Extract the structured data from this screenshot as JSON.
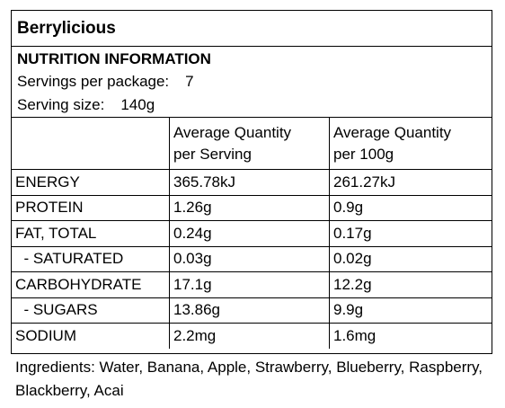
{
  "product_name": "Berrylicious",
  "info": {
    "title": "NUTRITION INFORMATION",
    "servings_label": "Servings per package:",
    "servings_value": "7",
    "size_label": "Serving size:",
    "size_value": "140g"
  },
  "table": {
    "header_serving_line1": "Average Quantity",
    "header_serving_line2": "per Serving",
    "header_100g_line1": "Average Quantity",
    "header_100g_line2": "per 100g",
    "rows": [
      {
        "name": "ENERGY",
        "serving": "365.78kJ",
        "per100": "261.27kJ"
      },
      {
        "name": "PROTEIN",
        "serving": "1.26g",
        "per100": "0.9g"
      },
      {
        "name": "FAT, TOTAL",
        "serving": "0.24g",
        "per100": "0.17g"
      },
      {
        "name": "  - SATURATED",
        "serving": "0.03g",
        "per100": "0.02g"
      },
      {
        "name": "CARBOHYDRATE",
        "serving": "17.1g",
        "per100": "12.2g"
      },
      {
        "name": "  - SUGARS",
        "serving": "13.86g",
        "per100": "9.9g"
      },
      {
        "name": "SODIUM",
        "serving": "2.2mg",
        "per100": "1.6mg"
      }
    ]
  },
  "ingredients": "Ingredients: Water, Banana, Apple, Strawberry, Blueberry, Raspberry, Blackberry, Acai"
}
